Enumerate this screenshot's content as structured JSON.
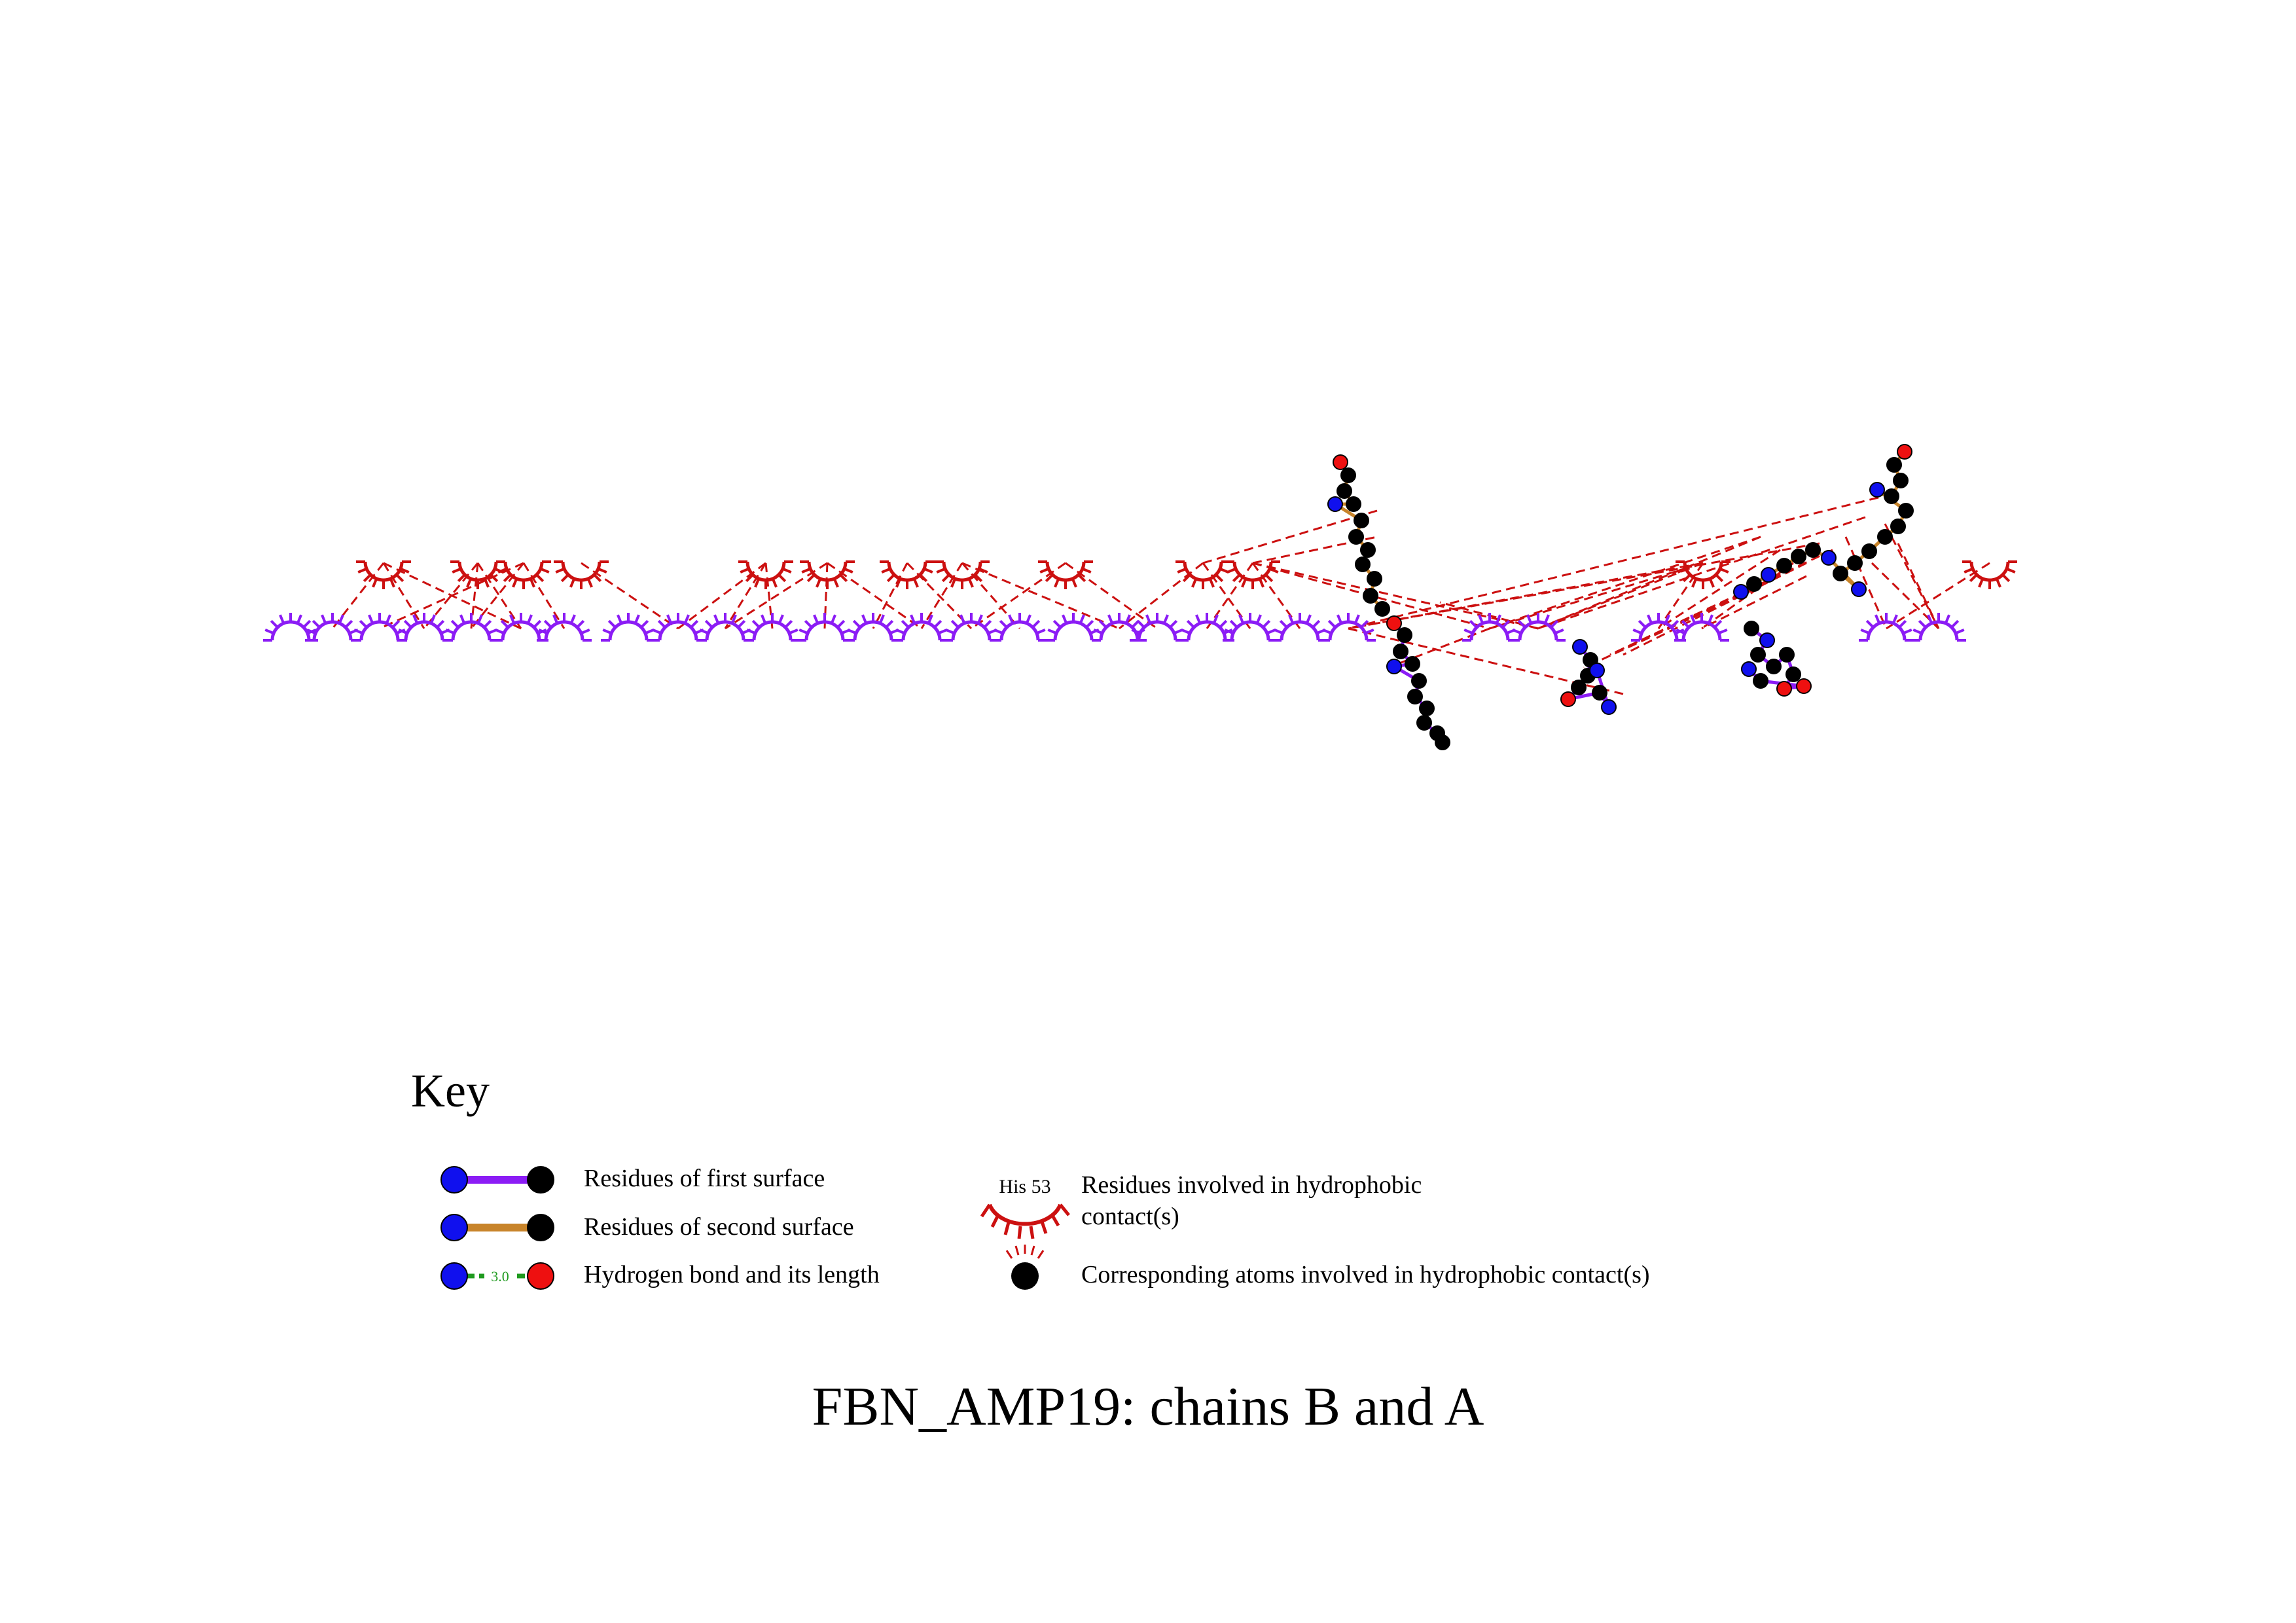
{
  "title": "FBN_AMP19: chains B and A",
  "colors": {
    "first_surface": "#8b1cf5",
    "second_surface": "#c8842a",
    "hydrophobic": "#cc1010",
    "hbond": "#1f9a1f",
    "nitrogen": "#1010ee",
    "oxygen": "#ee1010",
    "carbon": "#000000"
  },
  "residues_chain_a": [],
  "residues_chain_b": [],
  "ligands": [],
  "key": {
    "title": "Key",
    "items": [
      {
        "label": "Residues of first surface",
        "icon": "first-surface-bond-icon"
      },
      {
        "label": "Residues of second surface",
        "icon": "second-surface-bond-icon"
      },
      {
        "label": "Hydrogen bond and its length",
        "icon": "hydrogen-bond-icon",
        "sample_length": "3.0"
      },
      {
        "label": "Residues involved in hydrophobic contact(s)",
        "icon": "hydrophobic-arc-icon",
        "sample_residue": "His 53"
      },
      {
        "label": "Corresponding atoms involved in hydrophobic contact(s)",
        "icon": "hydrophobic-atom-icon"
      }
    ]
  }
}
